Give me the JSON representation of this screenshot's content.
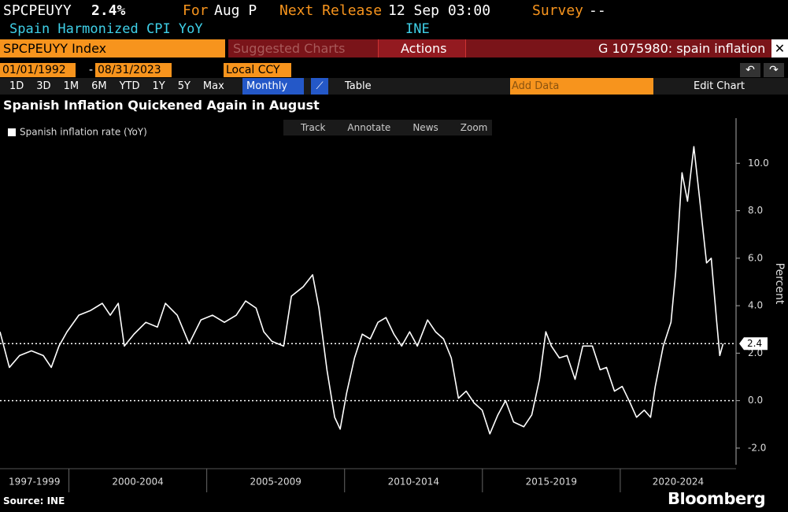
{
  "ui": {
    "ticker": "SPCPEUYY",
    "last": "2.4%",
    "for_label": "For",
    "period": "Aug P",
    "next_label": "Next Release",
    "next_date": "12 Sep 03:00",
    "survey_label": "Survey",
    "survey": "--",
    "description": "Spain Harmonized CPI YoY",
    "source_code": "INE",
    "security": "SPCPEUYY Index",
    "suggested": "Suggested Charts",
    "actions": "Actions",
    "command": "G 1075980: spain inflation",
    "start_date": "01/01/1992",
    "date_sep": "-",
    "end_date": "08/31/2023",
    "currency": "Local CCY",
    "periods": [
      "1D",
      "3D",
      "1M",
      "6M",
      "YTD",
      "1Y",
      "5Y",
      "Max"
    ],
    "frequency": "Monthly",
    "table": "Table",
    "add_data": "Add Data",
    "edit_chart": "Edit Chart",
    "chart_tools": [
      "Track",
      "Annotate",
      "News",
      "Zoom"
    ],
    "brand": "Bloomberg"
  },
  "chart_data": {
    "type": "line",
    "title": "Spanish Inflation Quickened Again in August",
    "source": "Source: INE",
    "y_label": "Percent",
    "legend": "top-left",
    "series": [
      {
        "name": "Spanish inflation rate (YoY)",
        "color": "#ffffff",
        "x": [
          1997.5,
          1997.84,
          1998.21,
          1998.64,
          1999.07,
          1999.36,
          1999.64,
          1999.93,
          2000.36,
          2000.79,
          2001.21,
          2001.5,
          2001.79,
          2002.01,
          2002.36,
          2002.79,
          2003.21,
          2003.5,
          2003.93,
          2004.36,
          2004.79,
          2005.21,
          2005.64,
          2006.07,
          2006.41,
          2006.79,
          2007.07,
          2007.36,
          2007.79,
          2008.07,
          2008.5,
          2008.84,
          2009.07,
          2009.36,
          2009.64,
          2009.84,
          2010.07,
          2010.36,
          2010.64,
          2010.93,
          2011.21,
          2011.5,
          2011.79,
          2012.07,
          2012.36,
          2012.64,
          2013.01,
          2013.3,
          2013.59,
          2013.87,
          2014.13,
          2014.41,
          2014.7,
          2014.99,
          2015.27,
          2015.56,
          2015.84,
          2016.13,
          2016.5,
          2016.79,
          2017.07,
          2017.3,
          2017.5,
          2017.79,
          2018.07,
          2018.36,
          2018.64,
          2018.99,
          2019.27,
          2019.5,
          2019.79,
          2020.07,
          2020.36,
          2020.59,
          2020.87,
          2021.1,
          2021.27,
          2021.56,
          2021.84,
          2022.01,
          2022.24,
          2022.44,
          2022.67,
          2022.87,
          2023.13,
          2023.3,
          2023.5,
          2023.61,
          2023.73
        ],
        "values": [
          2.9,
          1.4,
          1.9,
          2.1,
          1.9,
          1.4,
          2.3,
          2.9,
          3.6,
          3.8,
          4.1,
          3.6,
          4.1,
          2.3,
          2.8,
          3.3,
          3.1,
          4.1,
          3.6,
          2.4,
          3.4,
          3.6,
          3.3,
          3.6,
          4.2,
          3.9,
          2.9,
          2.5,
          2.3,
          4.4,
          4.8,
          5.3,
          3.9,
          1.3,
          -0.7,
          -1.2,
          0.3,
          1.8,
          2.8,
          2.6,
          3.3,
          3.5,
          2.8,
          2.3,
          2.9,
          2.3,
          3.4,
          2.9,
          2.6,
          1.8,
          0.1,
          0.4,
          -0.1,
          -0.4,
          -1.4,
          -0.6,
          0.0,
          -0.9,
          -1.1,
          -0.6,
          0.9,
          2.9,
          2.3,
          1.8,
          1.9,
          0.9,
          2.3,
          2.3,
          1.3,
          1.4,
          0.4,
          0.6,
          -0.1,
          -0.7,
          -0.4,
          -0.7,
          0.6,
          2.3,
          3.3,
          5.4,
          9.6,
          8.4,
          10.7,
          8.6,
          5.8,
          6.0,
          3.3,
          1.9,
          2.4
        ]
      }
    ],
    "xlim": [
      1997.5,
      2024.2
    ],
    "xticks": [
      2000,
      2005,
      2010,
      2015,
      2020
    ],
    "xlabels": [
      "1997-1999",
      "2000-2004",
      "2005-2009",
      "2010-2014",
      "2015-2019",
      "2020-2024"
    ],
    "ylim": [
      -2.7,
      11.9
    ],
    "yticks": [
      {
        "value": -2,
        "label": "-2.0"
      },
      {
        "value": 0,
        "label": "0.0"
      },
      {
        "value": 2,
        "label": "2.0"
      },
      {
        "value": 4,
        "label": "4.0"
      },
      {
        "value": 6,
        "label": "6.0"
      },
      {
        "value": 8,
        "label": "8.0"
      },
      {
        "value": 10,
        "label": "10.0"
      }
    ],
    "hlines": [
      0
    ],
    "last_value_line": true
  }
}
